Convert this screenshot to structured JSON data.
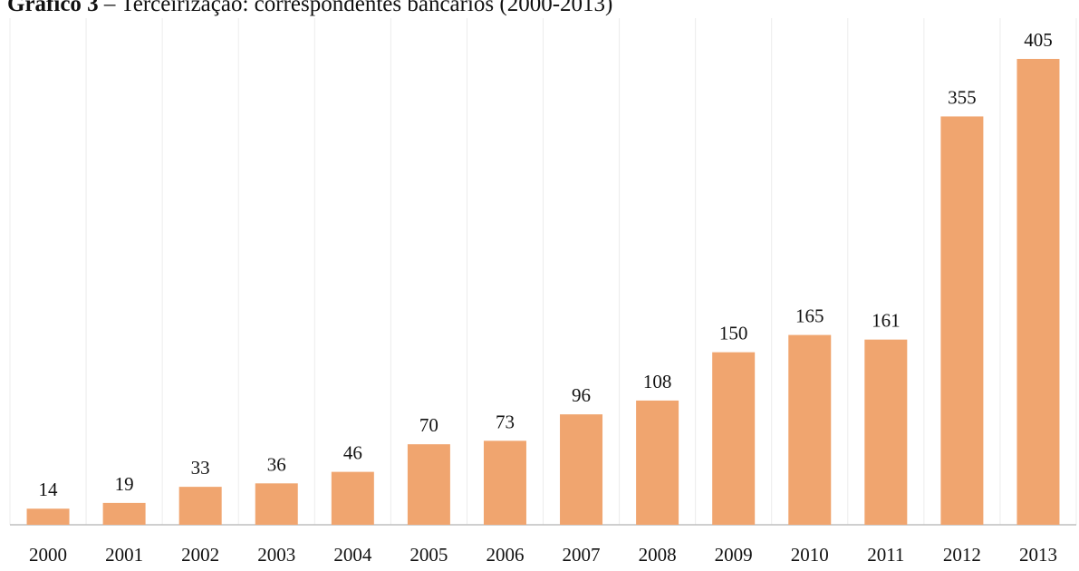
{
  "chart_data": {
    "type": "bar",
    "title_prefix": "Gráfico 3",
    "title": "– Terceirização: correspondentes bancários (2000-2013)",
    "categories": [
      "2000",
      "2001",
      "2002",
      "2003",
      "2004",
      "2005",
      "2006",
      "2007",
      "2008",
      "2009",
      "2010",
      "2011",
      "2012",
      "2013"
    ],
    "values": [
      14,
      19,
      33,
      36,
      46,
      70,
      73,
      96,
      108,
      150,
      165,
      161,
      355,
      405
    ],
    "color": "#f0a56f",
    "ylim": [
      0,
      405
    ]
  }
}
